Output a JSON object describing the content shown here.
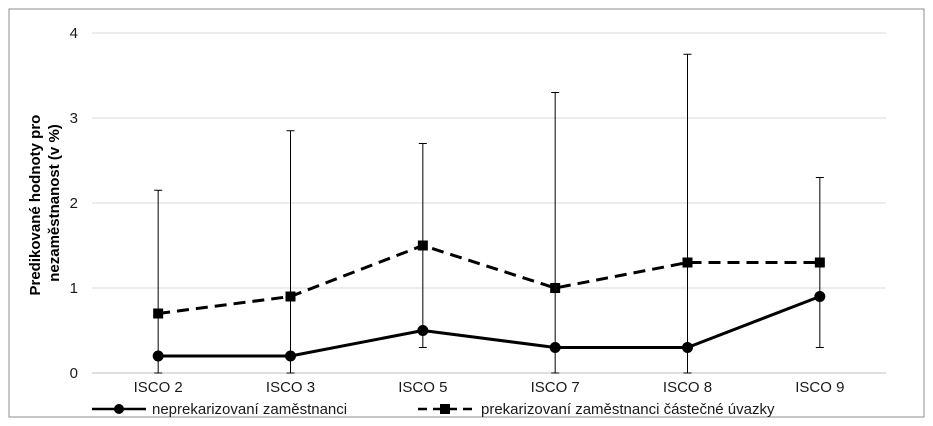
{
  "chart_data": {
    "type": "line",
    "categories": [
      "ISCO 2",
      "ISCO 3",
      "ISCO 5",
      "ISCO 7",
      "ISCO 8",
      "ISCO 9"
    ],
    "ylabel_lines": [
      "Predikované hodnoty pro",
      "nezaměstnanost (v %)"
    ],
    "ylim": [
      0,
      4
    ],
    "yticks": [
      0,
      1,
      2,
      3,
      4
    ],
    "grid": true,
    "legend_position": "bottom",
    "series": [
      {
        "name": "neprekarizovaní zaměstnanci",
        "style": "solid",
        "marker": "circle",
        "color": "#000000",
        "values": [
          0.2,
          0.2,
          0.5,
          0.3,
          0.3,
          0.9
        ]
      },
      {
        "name": "prekarizovaní zaměstnanci částečné úvazky",
        "style": "dashed",
        "marker": "square",
        "color": "#000000",
        "values": [
          0.7,
          0.9,
          1.5,
          1.0,
          1.3,
          1.3
        ]
      }
    ],
    "error_bars": [
      {
        "category": "ISCO 2",
        "low": 0.0,
        "high": 2.15
      },
      {
        "category": "ISCO 3",
        "low": 0.0,
        "high": 2.85
      },
      {
        "category": "ISCO 5",
        "low": 0.3,
        "high": 2.7
      },
      {
        "category": "ISCO 7",
        "low": 0.0,
        "high": 3.3
      },
      {
        "category": "ISCO 8",
        "low": 0.0,
        "high": 3.75
      },
      {
        "category": "ISCO 9",
        "low": 0.3,
        "high": 2.3
      }
    ]
  }
}
